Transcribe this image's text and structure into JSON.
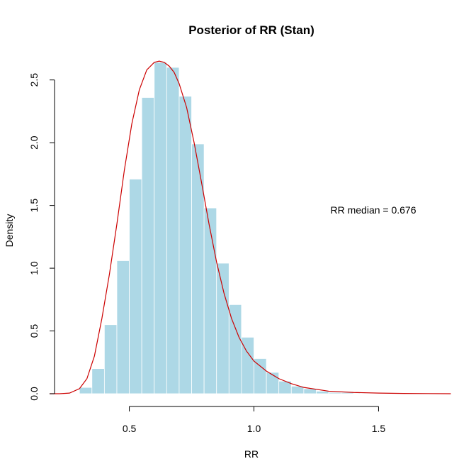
{
  "chart_data": {
    "type": "bar",
    "title": "Posterior of RR (Stan)",
    "xlabel": "RR",
    "ylabel": "Density",
    "xlim": [
      0.2,
      1.8
    ],
    "ylim": [
      0,
      2.6
    ],
    "x_ticks": [
      "0.5",
      "1.0",
      "1.5"
    ],
    "y_ticks": [
      "0.0",
      "0.5",
      "1.0",
      "1.5",
      "2.0",
      "2.5"
    ],
    "annotation": "RR median = 0.676",
    "bar_color": "#add8e6",
    "bar_edge_color": "#ffffff",
    "density_color": "#cc0000",
    "bins": {
      "x0": [
        0.3,
        0.35,
        0.4,
        0.45,
        0.5,
        0.55,
        0.6,
        0.65,
        0.7,
        0.75,
        0.8,
        0.85,
        0.9,
        0.95,
        1.0,
        1.05,
        1.1,
        1.15,
        1.2,
        1.25,
        1.3,
        1.35,
        1.4,
        1.45
      ],
      "x1": [
        0.35,
        0.4,
        0.45,
        0.5,
        0.55,
        0.6,
        0.65,
        0.7,
        0.75,
        0.8,
        0.85,
        0.9,
        0.95,
        1.0,
        1.05,
        1.1,
        1.15,
        1.2,
        1.25,
        1.3,
        1.35,
        1.4,
        1.45,
        1.5
      ],
      "density": [
        0.05,
        0.2,
        0.55,
        1.06,
        1.71,
        2.36,
        2.64,
        2.6,
        2.37,
        1.99,
        1.48,
        1.04,
        0.71,
        0.45,
        0.28,
        0.17,
        0.1,
        0.06,
        0.04,
        0.02,
        0.01,
        0.01,
        0.005,
        0.002
      ]
    },
    "density_curve": {
      "x": [
        0.18,
        0.22,
        0.26,
        0.3,
        0.33,
        0.36,
        0.39,
        0.42,
        0.45,
        0.48,
        0.51,
        0.54,
        0.57,
        0.6,
        0.62,
        0.64,
        0.66,
        0.68,
        0.7,
        0.73,
        0.76,
        0.79,
        0.82,
        0.85,
        0.88,
        0.91,
        0.94,
        0.97,
        1.0,
        1.05,
        1.1,
        1.15,
        1.2,
        1.3,
        1.4,
        1.5,
        1.6,
        1.7,
        1.79
      ],
      "y": [
        0.0,
        0.0,
        0.005,
        0.04,
        0.12,
        0.3,
        0.6,
        0.95,
        1.35,
        1.78,
        2.15,
        2.42,
        2.58,
        2.64,
        2.65,
        2.64,
        2.61,
        2.56,
        2.47,
        2.28,
        2.0,
        1.68,
        1.35,
        1.05,
        0.8,
        0.6,
        0.45,
        0.34,
        0.26,
        0.18,
        0.12,
        0.08,
        0.05,
        0.02,
        0.01,
        0.005,
        0.002,
        0.001,
        0.0
      ]
    }
  }
}
